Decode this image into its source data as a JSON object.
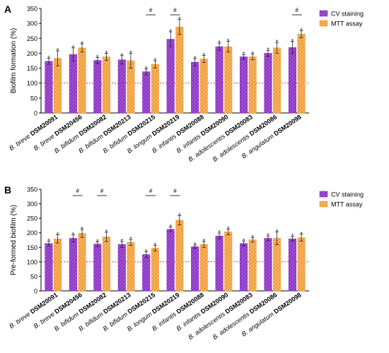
{
  "chart_data": [
    {
      "panel": "A",
      "type": "bar",
      "ylabel": "Biofilm formation (%)",
      "ylim": [
        0,
        350
      ],
      "yticks": [
        0,
        50,
        100,
        150,
        200,
        250,
        300,
        350
      ],
      "reference_line": 100,
      "legend_position": "top-right",
      "categories": [
        {
          "species": "B. breve",
          "strain": "DSM20091"
        },
        {
          "species": "B. breve",
          "strain": "DSM20456"
        },
        {
          "species": "B. bifidum",
          "strain": "DSM20082"
        },
        {
          "species": "B. bifidum",
          "strain": "DSM20213"
        },
        {
          "species": "B. bifidum",
          "strain": "DSM20215"
        },
        {
          "species": "B. longum",
          "strain": "DSM20219"
        },
        {
          "species": "B. infantis",
          "strain": "DSM20088"
        },
        {
          "species": "B. infantis",
          "strain": "DSM20090"
        },
        {
          "species": "B. adolescentis",
          "strain": "DSM20083"
        },
        {
          "species": "B. adolescentis",
          "strain": "DSM20086"
        },
        {
          "species": "B. angulatum",
          "strain": "DSM20098"
        }
      ],
      "series": [
        {
          "name": "CV staining",
          "color": "#8e2bc9",
          "values": [
            173,
            196,
            176,
            178,
            138,
            247,
            170,
            222,
            188,
            200,
            219
          ],
          "errors": [
            10,
            22,
            10,
            14,
            10,
            25,
            12,
            12,
            8,
            10,
            20
          ],
          "marks": [
            "*",
            "*",
            "*",
            "*",
            "*",
            "*",
            "*",
            "*",
            "*",
            "*",
            "*"
          ]
        },
        {
          "name": "MTT assay",
          "color": "#f4a042",
          "values": [
            183,
            218,
            188,
            175,
            163,
            288,
            181,
            222,
            188,
            218,
            264
          ],
          "errors": [
            25,
            14,
            12,
            25,
            12,
            25,
            12,
            18,
            10,
            18,
            12
          ],
          "marks": [
            "*",
            "*",
            "*",
            "*",
            "*",
            "*",
            "*",
            "*",
            "*",
            "*",
            "*"
          ]
        }
      ],
      "comparisons": [
        {
          "category_index": 4,
          "mark": "#"
        },
        {
          "category_index": 5,
          "mark": "#"
        },
        {
          "category_index": 10,
          "mark": "#"
        }
      ]
    },
    {
      "panel": "B",
      "type": "bar",
      "ylabel": "Pre-formed biofilm (%)",
      "ylim": [
        0,
        350
      ],
      "yticks": [
        0,
        50,
        100,
        150,
        200,
        250,
        300,
        350
      ],
      "reference_line": 100,
      "legend_position": "top-right",
      "categories": [
        {
          "species": "B. breve",
          "strain": "DSM20091"
        },
        {
          "species": "B. breve",
          "strain": "DSM20456"
        },
        {
          "species": "B. bifidum",
          "strain": "DSM20082"
        },
        {
          "species": "B. bifidum",
          "strain": "DSM20213"
        },
        {
          "species": "B. bifidum",
          "strain": "DSM20215"
        },
        {
          "species": "B. longum",
          "strain": "DSM20219"
        },
        {
          "species": "B. infantis",
          "strain": "DSM20088"
        },
        {
          "species": "B. infantis",
          "strain": "DSM20090"
        },
        {
          "species": "B. adolescentis",
          "strain": "DSM20083"
        },
        {
          "species": "B. adolescentis",
          "strain": "DSM20086"
        },
        {
          "species": "B. angulatum",
          "strain": "DSM20098"
        }
      ],
      "series": [
        {
          "name": "CV staining",
          "color": "#8e2bc9",
          "values": [
            163,
            181,
            161,
            160,
            125,
            212,
            152,
            189,
            163,
            181,
            179
          ],
          "errors": [
            8,
            12,
            8,
            10,
            10,
            8,
            6,
            10,
            8,
            8,
            8
          ],
          "marks": [
            "*",
            "*",
            "*",
            "*",
            "*",
            "*",
            "*",
            "*",
            "*",
            "*",
            "*"
          ]
        },
        {
          "name": "MTT assay",
          "color": "#f4a042",
          "values": [
            179,
            198,
            186,
            167,
            147,
            243,
            160,
            203,
            176,
            181,
            183
          ],
          "errors": [
            14,
            14,
            16,
            10,
            10,
            16,
            10,
            10,
            8,
            22,
            12
          ],
          "marks": [
            "*",
            "*",
            "*",
            "*",
            "*",
            "*",
            "*",
            "*",
            "*",
            "*",
            "*"
          ]
        }
      ],
      "comparisons": [
        {
          "category_index": 1,
          "mark": "#"
        },
        {
          "category_index": 2,
          "mark": "#"
        },
        {
          "category_index": 4,
          "mark": "#"
        },
        {
          "category_index": 5,
          "mark": "#"
        }
      ]
    }
  ]
}
